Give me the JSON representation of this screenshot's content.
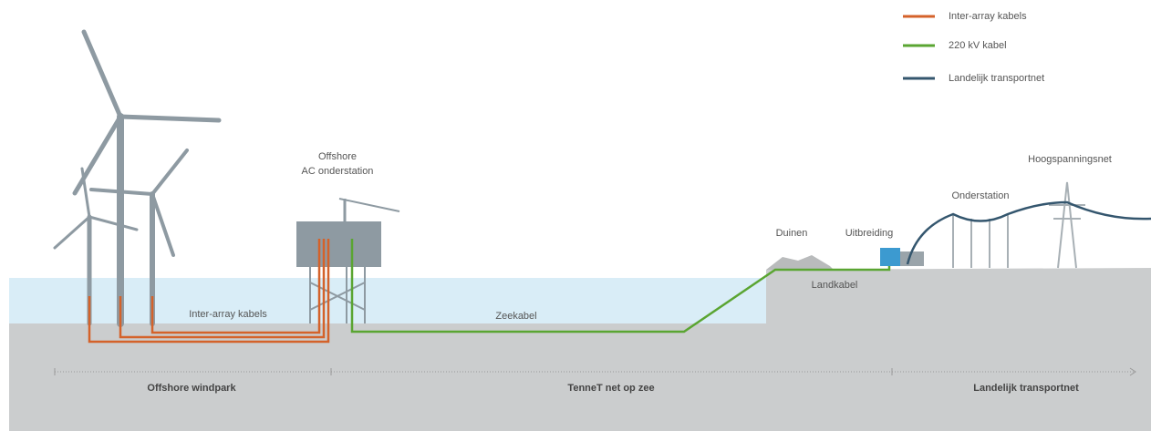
{
  "legend": [
    {
      "label": "Inter-array kabels"
    },
    {
      "label": "220 kV kabel"
    },
    {
      "label": "Landelijk transportnet"
    }
  ],
  "labels": {
    "platform": [
      "Offshore",
      "AC onderstation"
    ],
    "inter_array": "Inter-array kabels",
    "zeekabel": "Zeekabel",
    "duinen": "Duinen",
    "uitbreiding": "Uitbreiding",
    "landkabel": "Landkabel",
    "onderstation": "Onderstation",
    "hoogspanningsnet": "Hoogspanningsnet"
  },
  "zones": [
    "Offshore windpark",
    "TenneT net op zee",
    "Landelijk transportnet"
  ]
}
